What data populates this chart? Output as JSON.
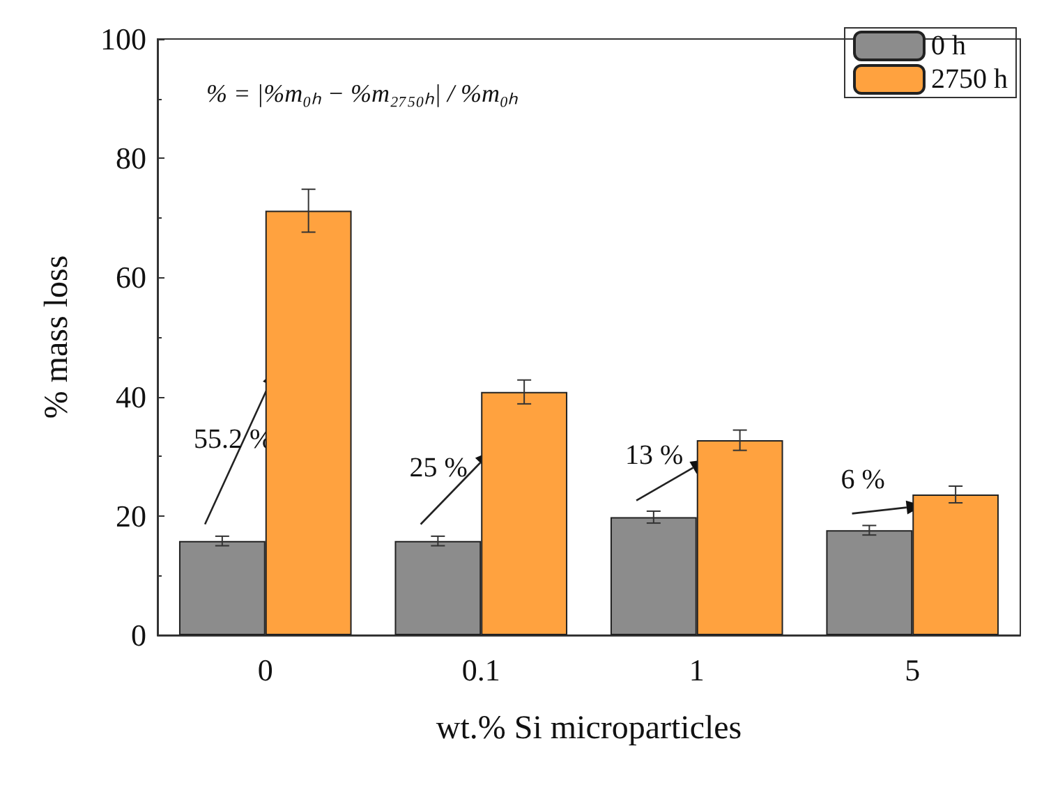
{
  "chart_data": {
    "type": "bar",
    "xlabel": "wt.% Si microparticles",
    "ylabel": "% mass loss",
    "categories": [
      "0",
      "0.1",
      "1",
      "5"
    ],
    "series": [
      {
        "name": "0 h",
        "color": "#8c8c8c",
        "values": [
          15.8,
          15.8,
          19.8,
          17.6
        ],
        "errors": [
          0.8,
          0.8,
          1,
          0.8
        ]
      },
      {
        "name": "2750 h",
        "color": "#ffa23f",
        "values": [
          71.2,
          40.8,
          32.7,
          23.6
        ],
        "errors": [
          3.6,
          2,
          1.7,
          1.4
        ]
      }
    ],
    "ylim": [
      0,
      100
    ],
    "yticks": [
      0,
      20,
      40,
      60,
      80,
      100
    ],
    "grid": false,
    "legend": "top right",
    "annotations": [
      "% = |%m₀ₕ − %m₂₇₅₀ₕ| / %m₀ₕ",
      "55.2 %",
      "25 %",
      "13 %",
      "6 %"
    ]
  }
}
